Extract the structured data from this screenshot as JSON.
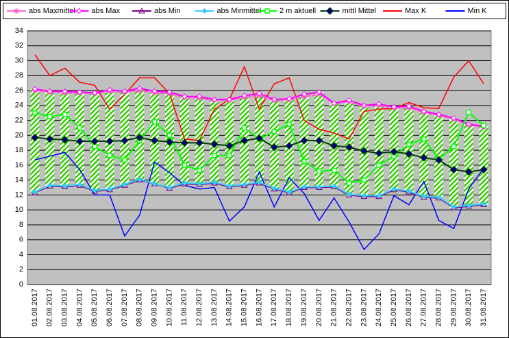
{
  "chart_data": {
    "type": "line",
    "categories": [
      "01.08.2017",
      "02.08.2017",
      "03.08.2017",
      "04.08.2017",
      "05.08.2017",
      "06.08.2017",
      "07.08.2017",
      "08.08.2017",
      "09.08.2017",
      "10.08.2017",
      "11.08.2017",
      "12.08.2017",
      "13.08.2017",
      "14.08.2017",
      "15.08.2017",
      "16.08.2017",
      "17.08.2017",
      "18.08.2017",
      "19.08.2017",
      "20.08.2017",
      "21.08.2017",
      "22.08.2017",
      "23.08.2017",
      "24.08.2017",
      "25.08.2017",
      "26.08.2017",
      "27.08.2017",
      "28.08.2017",
      "29.08.2017",
      "30.08.2017",
      "31.08.2017"
    ],
    "ylim": [
      0,
      34
    ],
    "yticks": [
      0,
      2,
      4,
      6,
      8,
      10,
      12,
      14,
      16,
      18,
      20,
      22,
      24,
      26,
      28,
      30,
      32,
      34
    ],
    "grid": true,
    "series": [
      {
        "name": "abs Maxmittel",
        "color": "#ff66cc",
        "marker": "star",
        "values": [
          26.0,
          25.8,
          25.7,
          25.7,
          25.6,
          25.9,
          25.8,
          26.0,
          25.7,
          25.6,
          25.1,
          25.0,
          24.7,
          24.7,
          25.1,
          25.3,
          24.7,
          24.8,
          25.2,
          25.5,
          24.3,
          24.5,
          23.9,
          24.0,
          23.7,
          23.7,
          23.1,
          22.7,
          22.2,
          21.4,
          21.1
        ]
      },
      {
        "name": "abs Max",
        "color": "#ff00ff",
        "marker": "diamond-open",
        "values": [
          26.2,
          25.9,
          25.9,
          25.8,
          25.7,
          26.1,
          25.9,
          26.3,
          25.9,
          25.8,
          25.2,
          25.2,
          24.8,
          24.8,
          25.3,
          25.6,
          24.8,
          24.9,
          25.5,
          25.8,
          24.3,
          24.7,
          24.0,
          24.2,
          23.8,
          23.9,
          23.2,
          22.8,
          22.3,
          21.5,
          21.2
        ]
      },
      {
        "name": "abs Min",
        "color": "#800080",
        "marker": "triangle",
        "values": [
          12.3,
          13.2,
          13.1,
          13.3,
          12.5,
          12.7,
          13.3,
          14.0,
          13.5,
          12.9,
          13.5,
          13.4,
          13.6,
          13.1,
          13.3,
          13.6,
          12.8,
          12.3,
          13.0,
          13.0,
          13.1,
          12.0,
          11.8,
          11.8,
          12.7,
          12.4,
          11.7,
          11.6,
          10.3,
          10.5,
          10.7
        ]
      },
      {
        "name": "abs Minmittel",
        "color": "#33ccff",
        "marker": "diamond",
        "values": [
          12.4,
          13.3,
          13.2,
          13.4,
          12.6,
          12.8,
          13.4,
          14.1,
          13.5,
          13.0,
          13.6,
          13.5,
          13.7,
          13.2,
          13.4,
          13.7,
          12.9,
          12.4,
          13.1,
          13.1,
          13.2,
          12.1,
          11.9,
          11.9,
          12.8,
          12.5,
          11.8,
          11.7,
          10.4,
          10.6,
          10.8
        ]
      },
      {
        "name": "2 m aktuell",
        "color": "#00ff00",
        "marker": "square-open",
        "values": [
          23.0,
          22.5,
          22.8,
          21.0,
          18.5,
          17.3,
          16.7,
          19.3,
          21.8,
          20.0,
          16.0,
          15.3,
          17.3,
          17.3,
          21.0,
          19.5,
          20.5,
          21.5,
          16.5,
          15.2,
          15.3,
          13.6,
          14.0,
          16.0,
          17.2,
          18.8,
          19.5,
          16.8,
          18.5,
          23.1,
          21.3
        ]
      },
      {
        "name": "mittl Mittel",
        "color": "#004000",
        "marker": "diamond-navy",
        "values": [
          19.7,
          19.5,
          19.4,
          19.2,
          19.2,
          19.2,
          19.3,
          19.7,
          19.3,
          19.1,
          19.0,
          19.0,
          18.8,
          18.6,
          19.3,
          19.6,
          18.4,
          18.6,
          19.3,
          19.3,
          18.6,
          18.4,
          17.9,
          17.6,
          17.8,
          17.5,
          17.0,
          16.7,
          15.4,
          15.1,
          15.4
        ]
      },
      {
        "name": "Max K",
        "color": "#ff0000",
        "marker": "none",
        "values": [
          30.8,
          28.0,
          29.0,
          27.1,
          26.7,
          23.5,
          25.5,
          27.7,
          27.7,
          25.6,
          19.5,
          19.3,
          23.5,
          24.8,
          29.2,
          23.5,
          26.9,
          27.7,
          22.0,
          20.8,
          20.3,
          19.5,
          23.2,
          23.5,
          23.6,
          24.4,
          23.7,
          23.6,
          27.8,
          30.0,
          26.9
        ]
      },
      {
        "name": "Min K",
        "color": "#0000ff",
        "marker": "none",
        "values": [
          16.7,
          17.2,
          17.7,
          15.4,
          12.0,
          12.0,
          6.5,
          9.3,
          16.4,
          15.0,
          13.3,
          12.8,
          13.0,
          8.5,
          10.4,
          15.1,
          10.4,
          14.3,
          12.2,
          8.6,
          11.6,
          8.4,
          4.7,
          6.8,
          11.9,
          10.7,
          13.8,
          8.6,
          7.5,
          12.8,
          15.6
        ]
      }
    ]
  }
}
